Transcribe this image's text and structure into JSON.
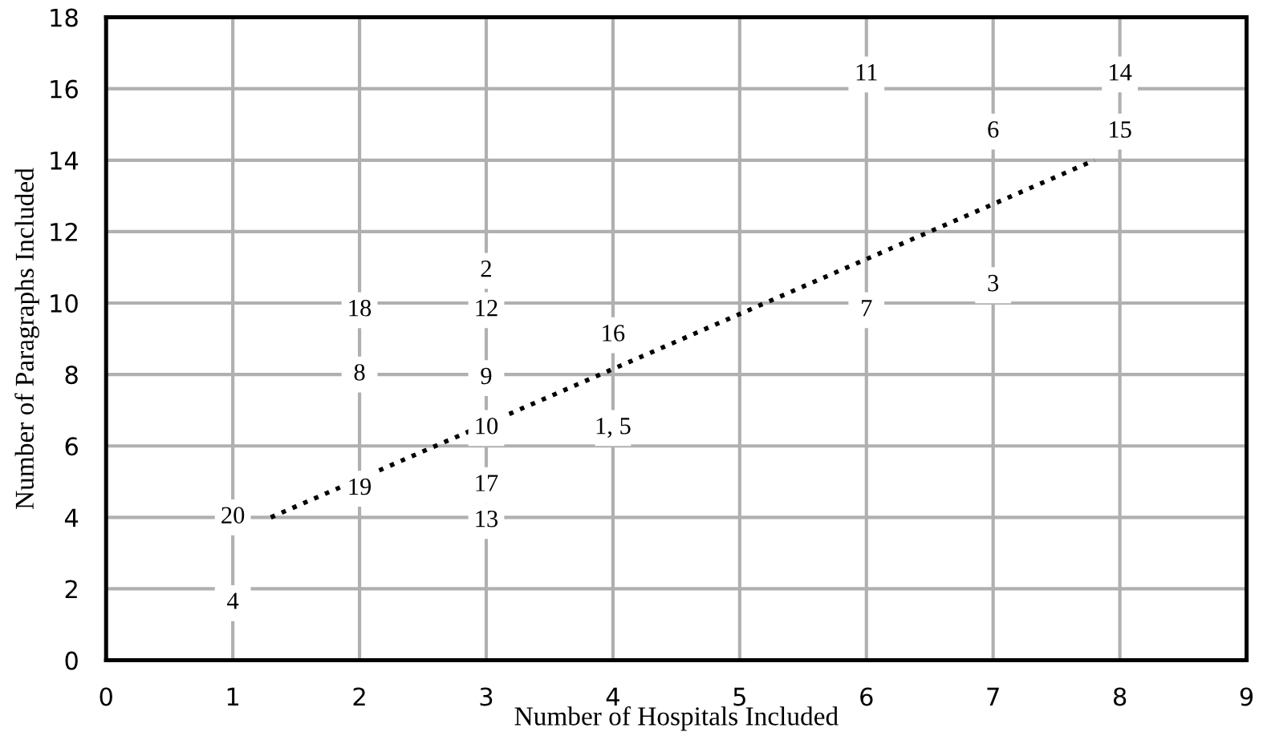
{
  "chart_data": {
    "type": "scatter",
    "xlabel": "Number of Hospitals Included",
    "ylabel": "Number of Paragraphs Included",
    "xlim": [
      0,
      9
    ],
    "ylim": [
      0,
      18
    ],
    "xticks": [
      0,
      1,
      2,
      3,
      4,
      5,
      6,
      7,
      8,
      9
    ],
    "yticks": [
      0,
      2,
      4,
      6,
      8,
      10,
      12,
      14,
      16,
      18
    ],
    "grid": true,
    "legend": false,
    "series": [
      {
        "color": "#ffffff",
        "marker": "square",
        "x": [
          1,
          1,
          2,
          2,
          2,
          3,
          3,
          3,
          3,
          3,
          3,
          4,
          4,
          6,
          6,
          7,
          7,
          8,
          8
        ],
        "values": [
          4.0,
          1.6,
          9.8,
          8.0,
          4.8,
          10.9,
          9.8,
          7.9,
          6.5,
          4.9,
          3.9,
          9.1,
          6.5,
          16.4,
          9.8,
          14.8,
          10.5,
          16.4,
          14.8
        ]
      },
      {
        "type": "line",
        "color": "#000000",
        "line_style": "dotted",
        "x": [
          1.3,
          7.8
        ],
        "values": [
          4.0,
          14.0
        ]
      }
    ],
    "annotations": [
      {
        "text": "20",
        "x": 1,
        "y": 4.0
      },
      {
        "text": "4",
        "x": 1,
        "y": 1.6
      },
      {
        "text": "18",
        "x": 2,
        "y": 9.8
      },
      {
        "text": "8",
        "x": 2,
        "y": 8.0
      },
      {
        "text": "19",
        "x": 2,
        "y": 4.8
      },
      {
        "text": "2",
        "x": 3,
        "y": 10.9
      },
      {
        "text": "12",
        "x": 3,
        "y": 9.8
      },
      {
        "text": "9",
        "x": 3,
        "y": 7.9
      },
      {
        "text": "10",
        "x": 3,
        "y": 6.5
      },
      {
        "text": "17",
        "x": 3,
        "y": 4.9
      },
      {
        "text": "13",
        "x": 3,
        "y": 3.9
      },
      {
        "text": "16",
        "x": 4,
        "y": 9.1
      },
      {
        "text": "1, 5",
        "x": 4,
        "y": 6.5
      },
      {
        "text": "11",
        "x": 6,
        "y": 16.4
      },
      {
        "text": "7",
        "x": 6,
        "y": 9.8
      },
      {
        "text": "6",
        "x": 7,
        "y": 14.8
      },
      {
        "text": "3",
        "x": 7,
        "y": 10.5
      },
      {
        "text": "14",
        "x": 8,
        "y": 16.4
      },
      {
        "text": "15",
        "x": 8,
        "y": 14.8
      }
    ]
  }
}
